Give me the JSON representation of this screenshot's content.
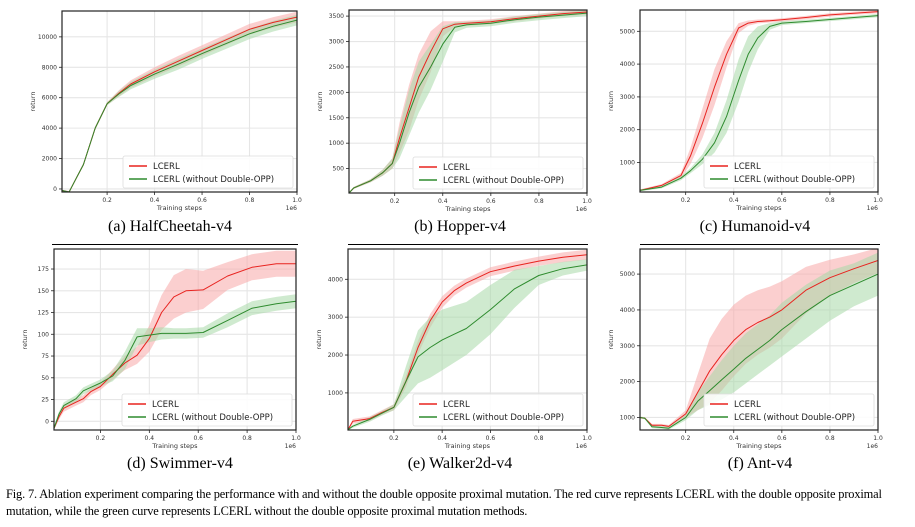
{
  "figure": {
    "caption": "Fig. 7.  Ablation experiment comparing the performance with and without the double opposite proximal mutation. The red curve represents LCERL with the double opposite proximal mutation, while the green curve represents LCERL without the double opposite proximal mutation methods.",
    "colors": {
      "red": "#e8231f",
      "green": "#2e8b2e",
      "red_fill": "#f8a8a8",
      "green_fill": "#a8d8a8",
      "grid": "#e6e6e6"
    }
  },
  "chart_data": [
    {
      "type": "line",
      "subcaption": "(a) HalfCheetah-v4",
      "xlabel": "Training steps",
      "ylabel": "return",
      "x_offset_label": "1e6",
      "xlim": [
        0.01,
        1.0
      ],
      "ylim": [
        -200,
        11700
      ],
      "xticks": [
        0.2,
        0.4,
        0.6,
        0.8,
        1.0
      ],
      "xtick_labels": [
        "0.2",
        "0.4",
        "0.6",
        "0.8",
        "1.0"
      ],
      "yticks": [
        0,
        2000,
        4000,
        6000,
        8000,
        10000
      ],
      "ytick_labels": [
        "0",
        "2000",
        "4000",
        "6000",
        "8000",
        "10000"
      ],
      "grid": true,
      "legend": "bottom-right",
      "x": [
        0.01,
        0.04,
        0.07,
        0.1,
        0.15,
        0.2,
        0.25,
        0.3,
        0.4,
        0.5,
        0.6,
        0.7,
        0.8,
        0.9,
        1.0
      ],
      "series": [
        {
          "name": "LCERL",
          "color": "red",
          "values": [
            -100,
            -200,
            700,
            1600,
            4000,
            5600,
            6300,
            6900,
            7700,
            8400,
            9100,
            9800,
            10500,
            10950,
            11300
          ],
          "band": [
            50,
            50,
            80,
            80,
            100,
            100,
            200,
            250,
            300,
            350,
            350,
            350,
            350,
            350,
            350
          ]
        },
        {
          "name": "LCERL (without Double-OPP)",
          "color": "green",
          "values": [
            -100,
            -200,
            700,
            1600,
            4000,
            5600,
            6250,
            6800,
            7550,
            8200,
            8900,
            9550,
            10200,
            10700,
            11100
          ],
          "band": [
            50,
            50,
            80,
            80,
            100,
            100,
            200,
            250,
            300,
            350,
            350,
            350,
            350,
            350,
            350
          ]
        }
      ]
    },
    {
      "type": "line",
      "subcaption": "(b) Hopper-v4",
      "xlabel": "Training steps",
      "ylabel": "return",
      "x_offset_label": "1e6",
      "xlim": [
        0.01,
        1.0
      ],
      "ylim": [
        20,
        3620
      ],
      "xticks": [
        0.2,
        0.4,
        0.6,
        0.8,
        1.0
      ],
      "xtick_labels": [
        "0.2",
        "0.4",
        "0.6",
        "0.8",
        "1.0"
      ],
      "yticks": [
        500,
        1000,
        1500,
        2000,
        2500,
        3000,
        3500
      ],
      "ytick_labels": [
        "500",
        "1000",
        "1500",
        "2000",
        "2500",
        "3000",
        "3500"
      ],
      "grid": true,
      "legend": "bottom-right",
      "x": [
        0.01,
        0.03,
        0.1,
        0.15,
        0.19,
        0.22,
        0.26,
        0.3,
        0.35,
        0.4,
        0.45,
        0.5,
        0.6,
        0.7,
        0.8,
        0.9,
        1.0
      ],
      "series": [
        {
          "name": "LCERL",
          "color": "red",
          "values": [
            20,
            120,
            260,
            420,
            600,
            1100,
            1700,
            2300,
            2800,
            3250,
            3340,
            3360,
            3390,
            3450,
            3500,
            3550,
            3580
          ],
          "band": [
            10,
            20,
            30,
            60,
            100,
            300,
            450,
            450,
            400,
            150,
            60,
            50,
            50,
            50,
            50,
            50,
            50
          ]
        },
        {
          "name": "LCERL (without Double-OPP)",
          "color": "green",
          "values": [
            20,
            120,
            260,
            420,
            600,
            1000,
            1600,
            2100,
            2500,
            2950,
            3280,
            3330,
            3360,
            3430,
            3480,
            3520,
            3560
          ],
          "band": [
            10,
            20,
            30,
            60,
            100,
            300,
            450,
            500,
            450,
            350,
            100,
            60,
            60,
            60,
            60,
            60,
            60
          ]
        }
      ]
    },
    {
      "type": "line",
      "subcaption": "(c) Humanoid-v4",
      "xlabel": "Training steps",
      "ylabel": "return",
      "x_offset_label": "1e6",
      "xlim": [
        0.01,
        1.0
      ],
      "ylim": [
        100,
        5650
      ],
      "xticks": [
        0.2,
        0.4,
        0.6,
        0.8,
        1.0
      ],
      "xtick_labels": [
        "0.2",
        "0.4",
        "0.6",
        "0.8",
        "1.0"
      ],
      "yticks": [
        1000,
        2000,
        3000,
        4000,
        5000
      ],
      "ytick_labels": [
        "1000",
        "2000",
        "3000",
        "4000",
        "5000"
      ],
      "grid": true,
      "legend": "bottom-right",
      "x": [
        0.01,
        0.1,
        0.18,
        0.22,
        0.27,
        0.32,
        0.37,
        0.42,
        0.46,
        0.5,
        0.55,
        0.6,
        0.7,
        0.8,
        0.9,
        1.0
      ],
      "series": [
        {
          "name": "LCERL",
          "color": "red",
          "values": [
            150,
            300,
            600,
            1200,
            2200,
            3300,
            4300,
            5100,
            5250,
            5300,
            5320,
            5350,
            5420,
            5500,
            5550,
            5600
          ],
          "band": [
            30,
            40,
            80,
            250,
            450,
            550,
            400,
            150,
            80,
            60,
            50,
            50,
            50,
            50,
            50,
            50
          ]
        },
        {
          "name": "LCERL (without Double-OPP)",
          "color": "green",
          "values": [
            150,
            250,
            520,
            750,
            1100,
            1600,
            2400,
            3500,
            4300,
            4800,
            5150,
            5250,
            5300,
            5360,
            5420,
            5480
          ],
          "band": [
            30,
            40,
            60,
            80,
            150,
            300,
            500,
            650,
            550,
            350,
            100,
            60,
            50,
            50,
            50,
            50
          ]
        }
      ]
    },
    {
      "type": "line",
      "subcaption": "(d) Swimmer-v4",
      "xlabel": "Training steps",
      "ylabel": "return",
      "x_offset_label": "1e6",
      "xlim": [
        0.01,
        1.0
      ],
      "ylim": [
        -10,
        198
      ],
      "xticks": [
        0.2,
        0.4,
        0.6,
        0.8,
        1.0
      ],
      "xtick_labels": [
        "0.2",
        "0.4",
        "0.6",
        "0.8",
        "1.0"
      ],
      "yticks": [
        0,
        25,
        50,
        75,
        100,
        125,
        150,
        175
      ],
      "ytick_labels": [
        "0",
        "25",
        "50",
        "75",
        "100",
        "125",
        "150",
        "175"
      ],
      "grid": true,
      "legend": "bottom-right",
      "x": [
        0.01,
        0.03,
        0.05,
        0.1,
        0.13,
        0.16,
        0.2,
        0.25,
        0.3,
        0.35,
        0.4,
        0.45,
        0.5,
        0.55,
        0.62,
        0.72,
        0.82,
        0.92,
        1.0
      ],
      "series": [
        {
          "name": "LCERL",
          "color": "red",
          "values": [
            -8,
            5,
            15,
            22,
            26,
            34,
            40,
            54,
            67,
            76,
            95,
            125,
            143,
            150,
            151,
            167,
            177,
            181,
            181
          ],
          "band": [
            2,
            3,
            4,
            4,
            4,
            4,
            4,
            6,
            8,
            10,
            15,
            20,
            25,
            25,
            22,
            16,
            15,
            15,
            15
          ]
        },
        {
          "name": "LCERL (without Double-OPP)",
          "color": "green",
          "values": [
            -8,
            8,
            18,
            26,
            35,
            39,
            44,
            52,
            70,
            97,
            99,
            101,
            101,
            101,
            102,
            116,
            130,
            135,
            138
          ],
          "band": [
            2,
            3,
            4,
            4,
            4,
            4,
            4,
            6,
            10,
            10,
            8,
            7,
            6,
            6,
            6,
            8,
            8,
            8,
            8
          ]
        }
      ]
    },
    {
      "type": "line",
      "subcaption": "(e) Walker2d-v4",
      "xlabel": "Training steps",
      "ylabel": "return",
      "x_offset_label": "1e6",
      "xlim": [
        0.01,
        1.0
      ],
      "ylim": [
        20,
        4800
      ],
      "xticks": [
        0.2,
        0.4,
        0.6,
        0.8,
        1.0
      ],
      "xtick_labels": [
        "0.2",
        "0.4",
        "0.6",
        "0.8",
        "1.0"
      ],
      "yticks": [
        1000,
        2000,
        3000,
        4000
      ],
      "ytick_labels": [
        "1000",
        "2000",
        "3000",
        "4000"
      ],
      "grid": true,
      "legend": "bottom-right",
      "x": [
        0.01,
        0.03,
        0.1,
        0.15,
        0.2,
        0.25,
        0.3,
        0.35,
        0.4,
        0.45,
        0.5,
        0.6,
        0.7,
        0.8,
        0.9,
        1.0
      ],
      "series": [
        {
          "name": "LCERL",
          "color": "red",
          "values": [
            30,
            250,
            320,
            480,
            620,
            1300,
            2200,
            2900,
            3400,
            3700,
            3900,
            4200,
            4350,
            4480,
            4580,
            4650
          ],
          "band": [
            30,
            60,
            60,
            60,
            80,
            150,
            180,
            180,
            150,
            130,
            120,
            120,
            120,
            120,
            130,
            130
          ]
        },
        {
          "name": "LCERL (without Double-OPP)",
          "color": "green",
          "values": [
            30,
            120,
            300,
            460,
            620,
            1300,
            1950,
            2200,
            2400,
            2550,
            2700,
            3200,
            3750,
            4100,
            4280,
            4380
          ],
          "band": [
            20,
            40,
            60,
            60,
            80,
            400,
            700,
            800,
            800,
            750,
            700,
            650,
            500,
            250,
            180,
            150
          ]
        }
      ]
    },
    {
      "type": "line",
      "subcaption": "(f) Ant-v4",
      "xlabel": "Training steps",
      "ylabel": "return",
      "x_offset_label": "1e6",
      "xlim": [
        0.01,
        1.0
      ],
      "ylim": [
        650,
        5700
      ],
      "xticks": [
        0.2,
        0.4,
        0.6,
        0.8,
        1.0
      ],
      "xtick_labels": [
        "0.2",
        "0.4",
        "0.6",
        "0.8",
        "1.0"
      ],
      "yticks": [
        1000,
        2000,
        3000,
        4000,
        5000
      ],
      "ytick_labels": [
        "1000",
        "2000",
        "3000",
        "4000",
        "5000"
      ],
      "grid": true,
      "legend": "bottom-right",
      "x": [
        0.01,
        0.03,
        0.06,
        0.1,
        0.13,
        0.2,
        0.25,
        0.3,
        0.35,
        0.4,
        0.45,
        0.5,
        0.55,
        0.6,
        0.7,
        0.8,
        0.9,
        1.0
      ],
      "series": [
        {
          "name": "LCERL",
          "color": "red",
          "values": [
            1000,
            980,
            780,
            780,
            750,
            1100,
            1700,
            2300,
            2750,
            3150,
            3450,
            3650,
            3800,
            4000,
            4550,
            4900,
            5150,
            5380
          ],
          "band": [
            20,
            30,
            40,
            40,
            40,
            100,
            500,
            900,
            1000,
            1000,
            950,
            900,
            850,
            800,
            650,
            500,
            400,
            350
          ]
        },
        {
          "name": "LCERL (without Double-OPP)",
          "color": "green",
          "values": [
            1000,
            980,
            740,
            720,
            700,
            1000,
            1450,
            1750,
            2050,
            2350,
            2650,
            2900,
            3150,
            3450,
            3950,
            4400,
            4700,
            5000
          ],
          "band": [
            20,
            30,
            40,
            40,
            40,
            80,
            250,
            400,
            550,
            650,
            700,
            700,
            700,
            750,
            750,
            700,
            600,
            600
          ]
        }
      ]
    }
  ]
}
